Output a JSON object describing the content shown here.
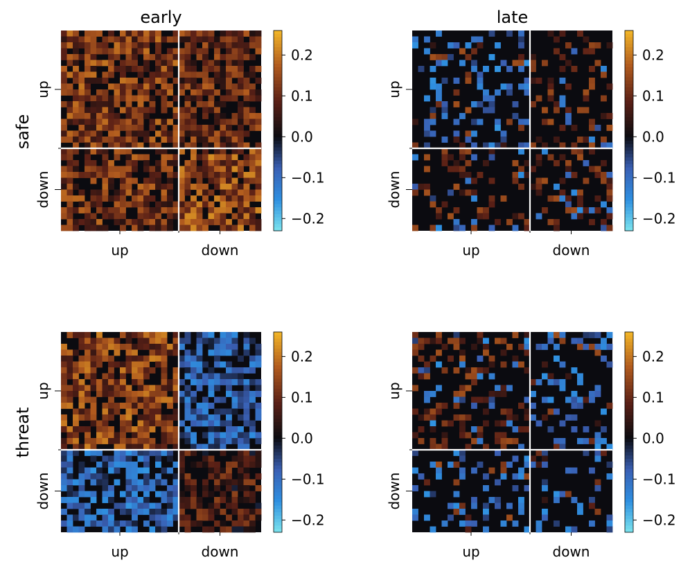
{
  "figure": {
    "row_labels": [
      "safe",
      "threat"
    ],
    "col_labels": [
      "early",
      "late"
    ]
  },
  "colormap": {
    "name": "diverging cyan-blue / black / brown-orange",
    "negative": [
      "#7be4ee",
      "#2e8fe0",
      "#3a5fb3",
      "#0b0b10"
    ],
    "positive": [
      "#0b0b10",
      "#5a2016",
      "#b05a1e",
      "#f3b728"
    ]
  },
  "chart_data": [
    {
      "type": "heatmap",
      "title": "early",
      "row": "safe",
      "xticklabels": [
        "up",
        "down"
      ],
      "yticklabels": [
        "up",
        "down"
      ],
      "grid_size": 34,
      "split_index": 20,
      "block_means": {
        "up_up": 0.12,
        "up_down": 0.1,
        "down_up": 0.11,
        "down_down": 0.14
      },
      "colorbar": {
        "range": [
          -0.23,
          0.26
        ],
        "ticks": [
          0.2,
          0.1,
          0.0,
          -0.1,
          -0.2
        ],
        "ticklabels": [
          "0.2",
          "0.1",
          "0.0",
          "−0.1",
          "−0.2"
        ]
      }
    },
    {
      "type": "heatmap",
      "title": "late",
      "row": "safe",
      "xticklabels": [
        "up",
        "down"
      ],
      "yticklabels": [
        "up",
        "down"
      ],
      "grid_size": 34,
      "split_index": 20,
      "block_means": {
        "up_up": -0.04,
        "up_down": 0.02,
        "down_up": 0.0,
        "down_down": 0.04
      },
      "colorbar": {
        "range": [
          -0.23,
          0.26
        ],
        "ticks": [
          0.2,
          0.1,
          0.0,
          -0.1,
          -0.2
        ],
        "ticklabels": [
          "0.2",
          "0.1",
          "0.0",
          "−0.1",
          "−0.2"
        ]
      }
    },
    {
      "type": "heatmap",
      "title": "",
      "row": "threat",
      "xticklabels": [
        "up",
        "down"
      ],
      "yticklabels": [
        "up",
        "down"
      ],
      "grid_size": 34,
      "split_index": 20,
      "block_means": {
        "up_up": 0.13,
        "up_down": -0.07,
        "down_up": -0.08,
        "down_down": 0.06
      },
      "colorbar": {
        "range": [
          -0.23,
          0.26
        ],
        "ticks": [
          0.2,
          0.1,
          0.0,
          -0.1,
          -0.2
        ],
        "ticklabels": [
          "0.2",
          "0.1",
          "0.0",
          "−0.1",
          "−0.2"
        ]
      }
    },
    {
      "type": "heatmap",
      "title": "",
      "row": "threat",
      "xticklabels": [
        "up",
        "down"
      ],
      "yticklabels": [
        "up",
        "down"
      ],
      "grid_size": 34,
      "split_index": 20,
      "block_means": {
        "up_up": 0.03,
        "up_down": -0.03,
        "down_up": -0.04,
        "down_down": -0.02
      },
      "colorbar": {
        "range": [
          -0.23,
          0.26
        ],
        "ticks": [
          0.2,
          0.1,
          0.0,
          -0.1,
          -0.2
        ],
        "ticklabels": [
          "0.2",
          "0.1",
          "0.0",
          "−0.1",
          "−0.2"
        ]
      }
    }
  ]
}
